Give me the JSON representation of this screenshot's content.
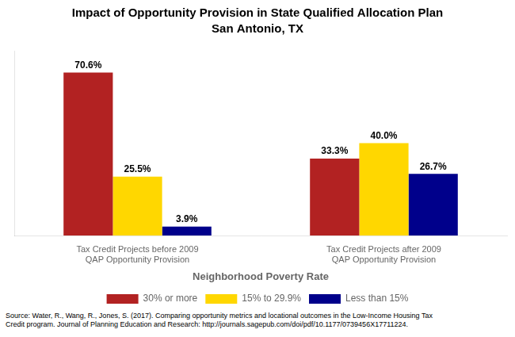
{
  "chart_data": {
    "type": "bar",
    "title": "Impact of Opportunity Provision in State Qualified Allocation Plan",
    "subtitle": "San Antonio, TX",
    "x_label": "Neighborhood Poverty Rate",
    "categories": [
      "Tax Credit Projects before 2009\nQAP Opportunity Provision",
      "Tax Credit Projects after 2009\nQAP Opportunity Provision"
    ],
    "series": [
      {
        "name": "30% or more",
        "color": "#B22222",
        "values": [
          70.6,
          33.3
        ],
        "value_labels": [
          "70.6%",
          "33.3%"
        ]
      },
      {
        "name": "15% to 29.9%",
        "color": "#FFD700",
        "values": [
          25.5,
          40.0
        ],
        "value_labels": [
          "25.5%",
          "40.0%"
        ]
      },
      {
        "name": "Less than 15%",
        "color": "#00008B",
        "values": [
          3.9,
          26.7
        ],
        "value_labels": [
          "3.9%",
          "26.7%"
        ]
      }
    ],
    "ylim": [
      0,
      80
    ],
    "grid": false,
    "legend": "bottom",
    "data_labels": true,
    "tick_labels": "x",
    "annotations": [
      "Source: Water, R., Wang, R., Jones, S. (2017). Comparing opportunity metrics and locational outcomes in the Low-Income Housing Tax\nCredit program. Journal of Planning Education and Research: http://journals.sagepub.com/doi/pdf/10.1177/0739456X17711224."
    ]
  }
}
